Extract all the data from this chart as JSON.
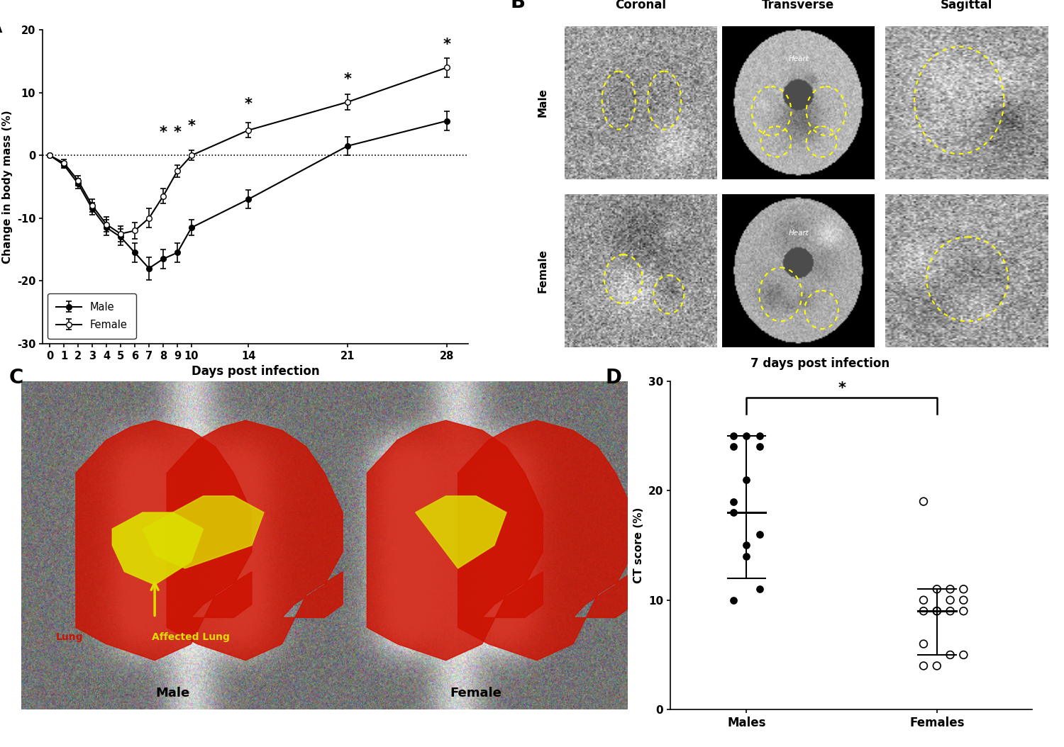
{
  "panel_A": {
    "days": [
      0,
      1,
      2,
      3,
      4,
      5,
      6,
      7,
      8,
      9,
      10,
      14,
      21,
      28
    ],
    "male_mean": [
      0,
      -1.5,
      -4.5,
      -8.5,
      -11.5,
      -13.0,
      -15.5,
      -18.0,
      -16.5,
      -15.5,
      -11.5,
      -7.0,
      1.5,
      5.5
    ],
    "male_err": [
      0,
      0.5,
      0.8,
      1.0,
      1.2,
      1.3,
      1.5,
      1.8,
      1.5,
      1.5,
      1.2,
      1.5,
      1.5,
      1.5
    ],
    "female_mean": [
      0,
      -1.2,
      -4.0,
      -8.0,
      -11.0,
      -12.5,
      -12.0,
      -10.0,
      -6.5,
      -2.5,
      0.0,
      4.0,
      8.5,
      14.0
    ],
    "female_err": [
      0,
      0.5,
      0.8,
      1.0,
      1.2,
      1.2,
      1.3,
      1.5,
      1.2,
      1.0,
      0.8,
      1.2,
      1.2,
      1.5
    ],
    "sig_days": [
      8,
      9,
      10,
      14,
      21,
      28
    ],
    "sig_y": [
      2.5,
      2.5,
      3.5,
      7.0,
      11.0,
      16.5
    ],
    "xlabel": "Days post infection",
    "ylabel": "Change in body mass (%)",
    "ylim": [
      -30,
      20
    ],
    "yticks": [
      -30,
      -20,
      -10,
      0,
      10,
      20
    ],
    "legend_male": "Male",
    "legend_female": "Female"
  },
  "panel_D": {
    "males_x": [
      0.88,
      0.95,
      1.02,
      0.88,
      0.95,
      1.02,
      0.88,
      0.95,
      1.02,
      0.88,
      0.95,
      1.02,
      0.88
    ],
    "males_y": [
      10,
      15,
      16,
      19,
      21,
      24,
      24,
      25,
      25,
      25,
      14,
      11,
      18
    ],
    "females_x": [
      1.88,
      1.95,
      2.02,
      2.09,
      1.88,
      1.95,
      2.02,
      2.09,
      1.88,
      1.95,
      2.02,
      2.09,
      1.88,
      1.95,
      2.02,
      2.09,
      1.88
    ],
    "females_y": [
      4,
      4,
      5,
      5,
      6,
      9,
      9,
      9,
      9,
      9,
      10,
      10,
      10,
      11,
      11,
      11,
      19
    ],
    "males_mean": 18.0,
    "males_sd_upper": 25.0,
    "males_sd_lower": 12.0,
    "females_mean": 9.0,
    "females_sd_upper": 11.0,
    "females_sd_lower": 5.0,
    "xlabel_males": "Males",
    "xlabel_females": "Females",
    "ylabel": "CT score (%)",
    "ylim": [
      0,
      30
    ],
    "yticks": [
      0,
      10,
      20,
      30
    ]
  },
  "background_color": "#ffffff"
}
